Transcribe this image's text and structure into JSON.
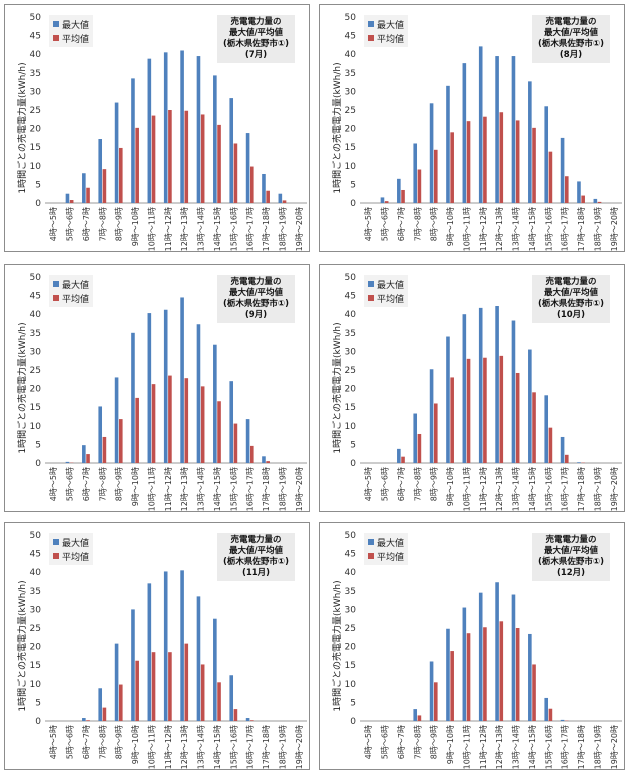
{
  "common": {
    "ylabel": "1時間ごとの売電電力量(kWh/h)",
    "legend": {
      "max_label": "最大値",
      "avg_label": "平均値"
    },
    "title_line1": "売電電力量の",
    "title_line2": "最大値/平均値",
    "title_line3": "(栃木県佐野市①)",
    "colors": {
      "max": "#4f81bd",
      "avg": "#c0504d"
    }
  },
  "chart_data": [
    {
      "type": "bar",
      "month_label": "(7月)",
      "categories": [
        "4時～5時",
        "5時～6時",
        "6時～7時",
        "7時～8時",
        "8時～9時",
        "9時～10時",
        "10時～11時",
        "11時～12時",
        "12時～13時",
        "13時～14時",
        "14時～15時",
        "15時～16時",
        "16時～17時",
        "17時～18時",
        "18時～19時",
        "19時～20時"
      ],
      "series": [
        {
          "name": "最大値",
          "values": [
            0,
            2.5,
            8,
            17.2,
            27,
            33.5,
            38.8,
            40.5,
            41,
            39.5,
            34.3,
            28.2,
            18.8,
            7.8,
            2.5,
            0
          ]
        },
        {
          "name": "平均値",
          "values": [
            0,
            0.8,
            4.1,
            9.1,
            14.8,
            20.2,
            23.5,
            25,
            24.8,
            23.8,
            21,
            16,
            9.8,
            3.3,
            0.7,
            0
          ]
        }
      ],
      "ylim": [
        0,
        50
      ],
      "yticks": [
        0,
        5,
        10,
        15,
        20,
        25,
        30,
        35,
        40,
        45,
        50
      ],
      "grid": false,
      "legend_position": "top-left"
    },
    {
      "type": "bar",
      "month_label": "(8月)",
      "categories": [
        "4時～5時",
        "5時～6時",
        "6時～7時",
        "7時～8時",
        "8時～9時",
        "9時～10時",
        "10時～11時",
        "11時～12時",
        "12時～13時",
        "13時～14時",
        "14時～15時",
        "15時～16時",
        "16時～17時",
        "17時～18時",
        "18時～19時",
        "19時～20時"
      ],
      "series": [
        {
          "name": "最大値",
          "values": [
            0,
            1.5,
            6.5,
            16,
            26.8,
            31.5,
            37.6,
            42.1,
            39.5,
            39.5,
            32.7,
            26,
            17.5,
            5.8,
            1.1,
            0
          ]
        },
        {
          "name": "平均値",
          "values": [
            0,
            0.5,
            3.5,
            9,
            14.3,
            19,
            22,
            23.2,
            24.4,
            22.2,
            20.2,
            13.8,
            7.2,
            2,
            0.3,
            0
          ]
        }
      ],
      "ylim": [
        0,
        50
      ],
      "yticks": [
        0,
        5,
        10,
        15,
        20,
        25,
        30,
        35,
        40,
        45,
        50
      ],
      "grid": false,
      "legend_position": "top-left"
    },
    {
      "type": "bar",
      "month_label": "(9月)",
      "categories": [
        "4時～5時",
        "5時～6時",
        "6時～7時",
        "7時～8時",
        "8時～9時",
        "9時～10時",
        "10時～11時",
        "11時～12時",
        "12時～13時",
        "13時～14時",
        "14時～15時",
        "15時～16時",
        "16時～17時",
        "17時～18時",
        "18時～19時",
        "19時～20時"
      ],
      "series": [
        {
          "name": "最大値",
          "values": [
            0,
            0.3,
            4.8,
            15.2,
            23,
            35,
            40.3,
            41.2,
            44.5,
            37.3,
            31.8,
            22,
            11.8,
            1.8,
            0,
            0
          ]
        },
        {
          "name": "平均値",
          "values": [
            0,
            0.1,
            2.4,
            7,
            11.8,
            17.5,
            21.2,
            23.5,
            22.8,
            20.6,
            16.6,
            10.6,
            4.6,
            0.5,
            0,
            0
          ]
        }
      ],
      "ylim": [
        0,
        50
      ],
      "yticks": [
        0,
        5,
        10,
        15,
        20,
        25,
        30,
        35,
        40,
        45,
        50
      ],
      "grid": false,
      "legend_position": "top-left"
    },
    {
      "type": "bar",
      "month_label": "(10月)",
      "categories": [
        "4時～5時",
        "5時～6時",
        "6時～7時",
        "7時～8時",
        "8時～9時",
        "9時～10時",
        "10時～11時",
        "11時～12時",
        "12時～13時",
        "13時～14時",
        "14時～15時",
        "15時～16時",
        "16時～17時",
        "17時～18時",
        "18時～19時",
        "19時～20時"
      ],
      "series": [
        {
          "name": "最大値",
          "values": [
            0,
            0,
            3.8,
            13.3,
            25.2,
            34,
            40,
            41.7,
            42.2,
            38.3,
            30.5,
            18.2,
            7,
            0.2,
            0,
            0
          ]
        },
        {
          "name": "平均値",
          "values": [
            0,
            0,
            1.7,
            7.8,
            16,
            23,
            28,
            28.3,
            28.8,
            24.2,
            19,
            9.5,
            2.2,
            0.1,
            0,
            0
          ]
        }
      ],
      "ylim": [
        0,
        50
      ],
      "yticks": [
        0,
        5,
        10,
        15,
        20,
        25,
        30,
        35,
        40,
        45,
        50
      ],
      "grid": false,
      "legend_position": "top-left"
    },
    {
      "type": "bar",
      "month_label": "(11月)",
      "categories": [
        "4時～5時",
        "5時～6時",
        "6時～7時",
        "7時～8時",
        "8時～9時",
        "9時～10時",
        "10時～11時",
        "11時～12時",
        "12時～13時",
        "13時～14時",
        "14時～15時",
        "15時～16時",
        "16時～17時",
        "17時～18時",
        "18時～19時",
        "19時～20時"
      ],
      "series": [
        {
          "name": "最大値",
          "values": [
            0,
            0,
            0.8,
            8.8,
            20.8,
            30,
            37,
            40.2,
            40.5,
            33.5,
            27.5,
            12.3,
            0.8,
            0,
            0,
            0
          ]
        },
        {
          "name": "平均値",
          "values": [
            0,
            0,
            0.2,
            3.6,
            9.8,
            16.2,
            18.5,
            18.5,
            20.8,
            15.2,
            10.4,
            3.2,
            0.2,
            0,
            0,
            0
          ]
        }
      ],
      "ylim": [
        0,
        50
      ],
      "yticks": [
        0,
        5,
        10,
        15,
        20,
        25,
        30,
        35,
        40,
        45,
        50
      ],
      "grid": false,
      "legend_position": "top-left"
    },
    {
      "type": "bar",
      "month_label": "(12月)",
      "categories": [
        "4時～5時",
        "5時～6時",
        "6時～7時",
        "7時～8時",
        "8時～9時",
        "9時～10時",
        "10時～11時",
        "11時～12時",
        "12時～13時",
        "13時～14時",
        "14時～15時",
        "15時～16時",
        "16時～17時",
        "17時～18時",
        "18時～19時",
        "19時～20時"
      ],
      "series": [
        {
          "name": "最大値",
          "values": [
            0,
            0,
            0,
            3.2,
            16,
            24.8,
            30.5,
            34.5,
            37.3,
            34,
            23.4,
            6.2,
            0.3,
            0,
            0,
            0
          ]
        },
        {
          "name": "平均値",
          "values": [
            0,
            0,
            0,
            1.5,
            10.4,
            18.8,
            23.6,
            25.2,
            26.8,
            25,
            15.2,
            3.3,
            0.1,
            0,
            0,
            0
          ]
        }
      ],
      "ylim": [
        0,
        50
      ],
      "yticks": [
        0,
        5,
        10,
        15,
        20,
        25,
        30,
        35,
        40,
        45,
        50
      ],
      "grid": false,
      "legend_position": "top-left"
    }
  ]
}
